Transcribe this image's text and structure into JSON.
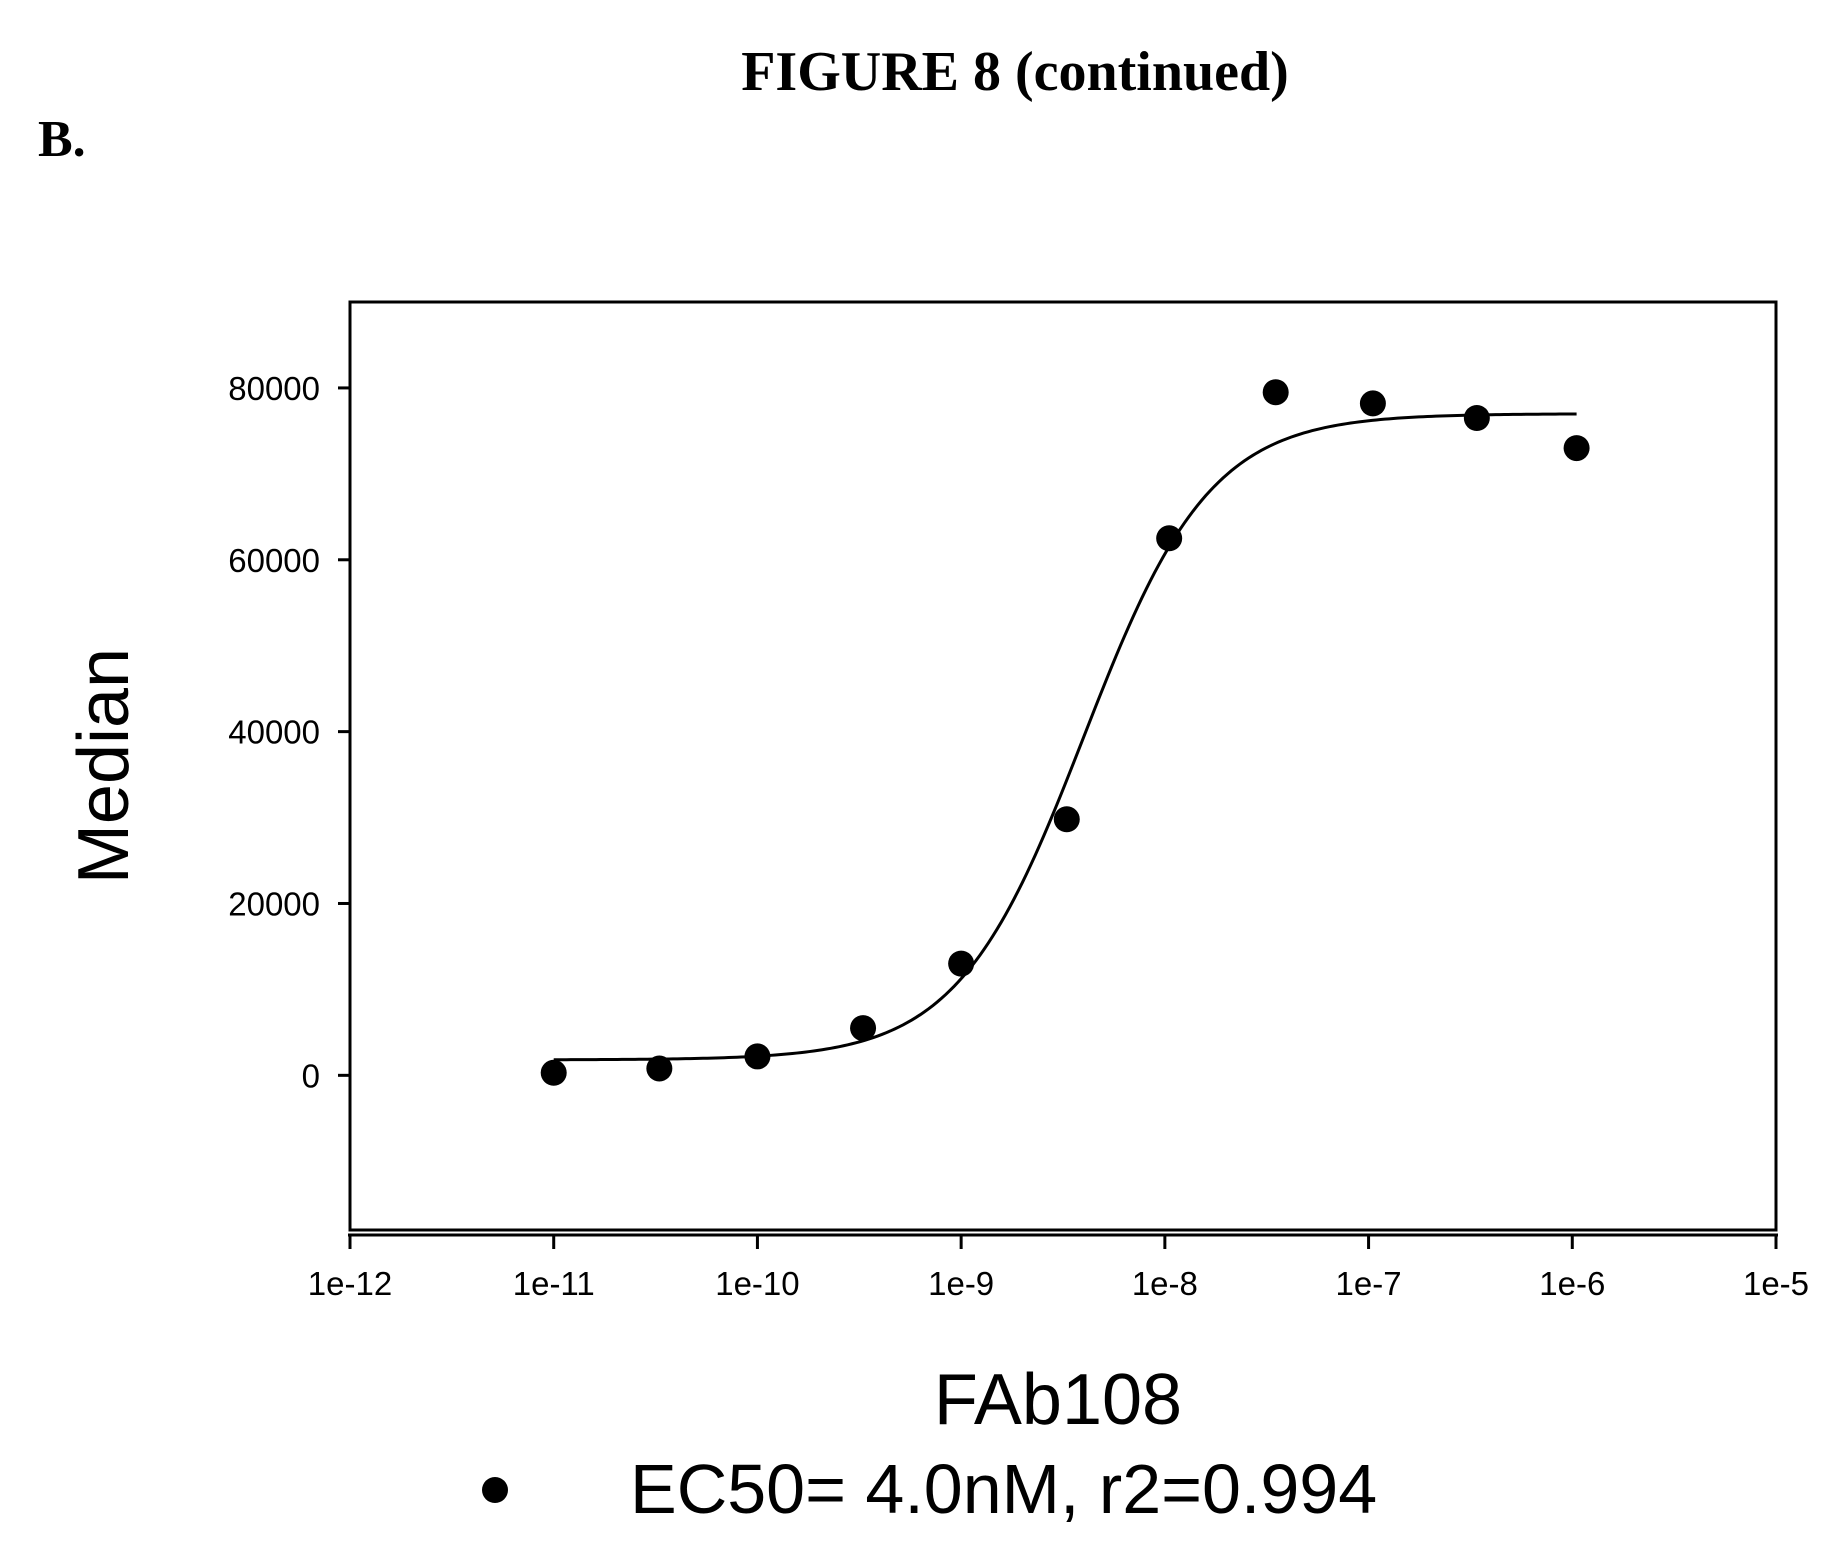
{
  "figure": {
    "title": "FIGURE 8 (continued)",
    "panel_label": "B."
  },
  "chart_data": {
    "type": "scatter",
    "xscale": "log",
    "xlabel": "FAb108",
    "ylabel": "Median",
    "xlim": [
      1e-12,
      1e-05
    ],
    "ylim": [
      -18000,
      90000
    ],
    "xticks": [
      {
        "value": 1e-12,
        "label": "1e-12"
      },
      {
        "value": 1e-11,
        "label": "1e-11"
      },
      {
        "value": 1e-10,
        "label": "1e-10"
      },
      {
        "value": 1e-09,
        "label": "1e-9"
      },
      {
        "value": 1e-08,
        "label": "1e-8"
      },
      {
        "value": 1e-07,
        "label": "1e-7"
      },
      {
        "value": 1e-06,
        "label": "1e-6"
      },
      {
        "value": 1e-05,
        "label": "1e-5"
      }
    ],
    "yticks": [
      {
        "value": 0,
        "label": "0"
      },
      {
        "value": 20000,
        "label": "20000"
      },
      {
        "value": 40000,
        "label": "40000"
      },
      {
        "value": 60000,
        "label": "60000"
      },
      {
        "value": 80000,
        "label": "80000"
      }
    ],
    "series": [
      {
        "name": "EC50= 4.0nM, r2=0.994",
        "marker": "filled-circle",
        "color": "#000000",
        "points": [
          {
            "x": 1e-11,
            "y": 300
          },
          {
            "x": 3.3e-11,
            "y": 800
          },
          {
            "x": 1e-10,
            "y": 2200
          },
          {
            "x": 3.3e-10,
            "y": 5500
          },
          {
            "x": 1e-09,
            "y": 13000
          },
          {
            "x": 3.3e-09,
            "y": 29800
          },
          {
            "x": 1.05e-08,
            "y": 62500
          },
          {
            "x": 3.5e-08,
            "y": 79500
          },
          {
            "x": 1.05e-07,
            "y": 78200
          },
          {
            "x": 3.4e-07,
            "y": 76500
          },
          {
            "x": 1.05e-06,
            "y": 73000
          }
        ],
        "fit": {
          "model": "4-parameter logistic",
          "bottom": 1800,
          "top": 77000,
          "ec50": 4e-09,
          "hill": 1.4,
          "x_range": [
            1e-11,
            1.05e-06
          ]
        }
      }
    ],
    "grid": false,
    "legend": "bottom-center"
  }
}
